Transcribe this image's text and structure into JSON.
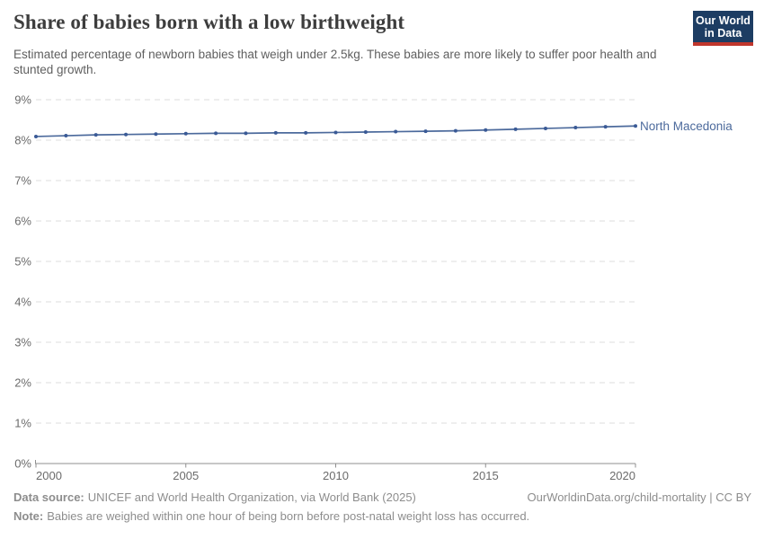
{
  "chart_data": {
    "type": "line",
    "title": "Share of babies born with a low birthweight",
    "subtitle": "Estimated percentage of newborn babies that weigh under 2.5kg. These babies are more likely to suffer poor health and stunted growth.",
    "x": [
      2000,
      2001,
      2002,
      2003,
      2004,
      2005,
      2006,
      2007,
      2008,
      2009,
      2010,
      2011,
      2012,
      2013,
      2014,
      2015,
      2016,
      2017,
      2018,
      2019,
      2020
    ],
    "series": [
      {
        "name": "North Macedonia",
        "color": "#4c6a9c",
        "point_color": "#3a5a96",
        "values": [
          8.09,
          8.11,
          8.13,
          8.14,
          8.15,
          8.16,
          8.17,
          8.17,
          8.18,
          8.18,
          8.19,
          8.2,
          8.21,
          8.22,
          8.23,
          8.25,
          8.27,
          8.29,
          8.31,
          8.33,
          8.35
        ]
      }
    ],
    "xlim": [
      2000,
      2020
    ],
    "ylim": [
      0,
      9
    ],
    "xticks": [
      2000,
      2005,
      2010,
      2015,
      2020
    ],
    "yticks": [
      0,
      1,
      2,
      3,
      4,
      5,
      6,
      7,
      8,
      9
    ],
    "y_unit": "%",
    "grid": "horizontal-dashed",
    "legend": "inline-right-label"
  },
  "logo": {
    "line1": "Our World",
    "line2": "in Data",
    "bg_color": "#1d3d63",
    "stripe_color": "#c0362c"
  },
  "footer": {
    "data_source_label": "Data source:",
    "data_source": "UNICEF and World Health Organization, via World Bank (2025)",
    "url_text": "OurWorldinData.org/child-mortality | CC BY",
    "note_label": "Note:",
    "note": "Babies are weighed within one hour of being born before post-natal weight loss has occurred."
  }
}
